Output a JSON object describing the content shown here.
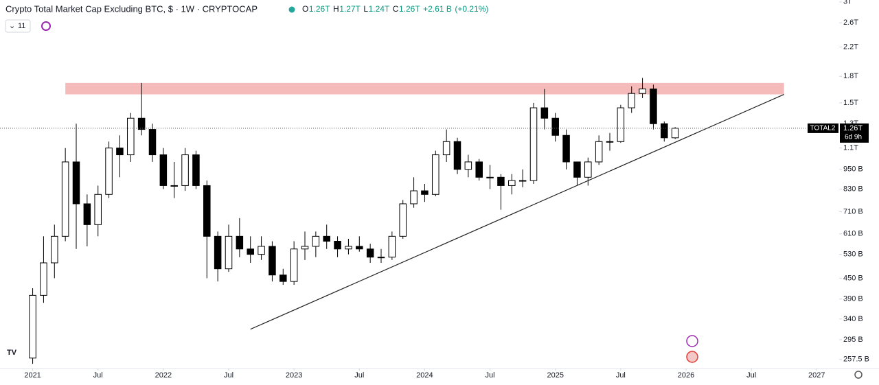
{
  "chart_data": {
    "type": "candlestick",
    "title": "Crypto Total Market Cap Excluding BTC, $ · 1W · CRYPTOCAP",
    "interval_badge": "11",
    "readout": [
      {
        "prefix": "O",
        "value": 1260000000000.0,
        "label": "1.26T"
      },
      {
        "prefix": "H",
        "value": 1270000000000.0,
        "label": "1.27T"
      },
      {
        "prefix": "L",
        "value": 1240000000000.0,
        "label": "1.24T"
      },
      {
        "prefix": "C",
        "value": 1260000000000.0,
        "label": "1.26T"
      }
    ],
    "change": {
      "value": 2610000000.0,
      "label": "+2.61 B"
    },
    "change_pct": {
      "value": 0.21,
      "label": "(+0.21%)"
    },
    "last_price": {
      "name": "TOTAL2",
      "value": 1260000000000.0,
      "label": "1.26T",
      "countdown": "6d 9h"
    },
    "log_scale": true,
    "up_color": "#ffffff",
    "down_color": "#000000",
    "outline_color": "#000000",
    "x": [
      "2021-01",
      "2021-02",
      "2021-03",
      "2021-04",
      "2021-05",
      "2021-06",
      "2021-07",
      "2021-08",
      "2021-09",
      "2021-10",
      "2021-11",
      "2021-12",
      "2022-01",
      "2022-02",
      "2022-03",
      "2022-04",
      "2022-05",
      "2022-06",
      "2022-07",
      "2022-08",
      "2022-09",
      "2022-10",
      "2022-11",
      "2022-12",
      "2023-01",
      "2023-02",
      "2023-03",
      "2023-04",
      "2023-05",
      "2023-06",
      "2023-07",
      "2023-08",
      "2023-09",
      "2023-10",
      "2023-11",
      "2023-12",
      "2024-01",
      "2024-02",
      "2024-03",
      "2024-04",
      "2024-05",
      "2024-06",
      "2024-07",
      "2024-08",
      "2024-09",
      "2024-10",
      "2024-11",
      "2024-12",
      "2025-01",
      "2025-02",
      "2025-03",
      "2025-04",
      "2025-05",
      "2025-06",
      "2025-07",
      "2025-08",
      "2025-09",
      "2025-10",
      "2025-11",
      "2025-12"
    ],
    "series": [
      {
        "name": "TOTAL2",
        "open": [
          260000000000.0,
          400000000000.0,
          500000000000.0,
          600000000000.0,
          1000000000000.0,
          750000000000.0,
          650000000000.0,
          800000000000.0,
          1100000000000.0,
          1050000000000.0,
          1350000000000.0,
          1250000000000.0,
          1050000000000.0,
          850000000000.0,
          850000000000.0,
          1050000000000.0,
          850000000000.0,
          600000000000.0,
          480000000000.0,
          600000000000.0,
          550000000000.0,
          530000000000.0,
          560000000000.0,
          460000000000.0,
          440000000000.0,
          550000000000.0,
          560000000000.0,
          600000000000.0,
          580000000000.0,
          550000000000.0,
          560000000000.0,
          550000000000.0,
          520000000000.0,
          520000000000.0,
          600000000000.0,
          750000000000.0,
          820000000000.0,
          800000000000.0,
          1050000000000.0,
          1150000000000.0,
          950000000000.0,
          1000000000000.0,
          900000000000.0,
          900000000000.0,
          850000000000.0,
          880000000000.0,
          880000000000.0,
          1450000000000.0,
          1350000000000.0,
          1200000000000.0,
          1000000000000.0,
          900000000000.0,
          1000000000000.0,
          1150000000000.0,
          1150000000000.0,
          1450000000000.0,
          1600000000000.0,
          1650000000000.0,
          1300000000000.0,
          1180000000000.0
        ],
        "high": [
          420000000000.0,
          600000000000.0,
          650000000000.0,
          1100000000000.0,
          1300000000000.0,
          800000000000.0,
          850000000000.0,
          1150000000000.0,
          1200000000000.0,
          1400000000000.0,
          1720000000000.0,
          1300000000000.0,
          1100000000000.0,
          1000000000000.0,
          1100000000000.0,
          1080000000000.0,
          880000000000.0,
          620000000000.0,
          650000000000.0,
          680000000000.0,
          600000000000.0,
          600000000000.0,
          580000000000.0,
          480000000000.0,
          580000000000.0,
          620000000000.0,
          620000000000.0,
          650000000000.0,
          600000000000.0,
          590000000000.0,
          600000000000.0,
          570000000000.0,
          550000000000.0,
          620000000000.0,
          770000000000.0,
          900000000000.0,
          860000000000.0,
          1080000000000.0,
          1250000000000.0,
          1180000000000.0,
          1050000000000.0,
          1020000000000.0,
          980000000000.0,
          920000000000.0,
          920000000000.0,
          950000000000.0,
          1500000000000.0,
          1650000000000.0,
          1400000000000.0,
          1250000000000.0,
          1000000000000.0,
          1030000000000.0,
          1200000000000.0,
          1220000000000.0,
          1480000000000.0,
          1680000000000.0,
          1780000000000.0,
          1700000000000.0,
          1320000000000.0,
          1270000000000.0
        ],
        "low": [
          250000000000.0,
          380000000000.0,
          450000000000.0,
          580000000000.0,
          550000000000.0,
          560000000000.0,
          600000000000.0,
          780000000000.0,
          900000000000.0,
          1000000000000.0,
          1200000000000.0,
          1000000000000.0,
          830000000000.0,
          780000000000.0,
          820000000000.0,
          830000000000.0,
          450000000000.0,
          440000000000.0,
          470000000000.0,
          520000000000.0,
          500000000000.0,
          510000000000.0,
          440000000000.0,
          430000000000.0,
          430000000000.0,
          510000000000.0,
          520000000000.0,
          550000000000.0,
          520000000000.0,
          530000000000.0,
          540000000000.0,
          500000000000.0,
          500000000000.0,
          510000000000.0,
          590000000000.0,
          730000000000.0,
          760000000000.0,
          790000000000.0,
          1000000000000.0,
          920000000000.0,
          900000000000.0,
          880000000000.0,
          830000000000.0,
          720000000000.0,
          800000000000.0,
          840000000000.0,
          860000000000.0,
          1250000000000.0,
          1150000000000.0,
          950000000000.0,
          850000000000.0,
          850000000000.0,
          980000000000.0,
          1080000000000.0,
          1140000000000.0,
          1400000000000.0,
          1550000000000.0,
          1250000000000.0,
          1150000000000.0,
          1170000000000.0
        ],
        "close": [
          400000000000.0,
          500000000000.0,
          600000000000.0,
          1000000000000.0,
          750000000000.0,
          650000000000.0,
          800000000000.0,
          1100000000000.0,
          1050000000000.0,
          1350000000000.0,
          1250000000000.0,
          1050000000000.0,
          850000000000.0,
          850000000000.0,
          1050000000000.0,
          850000000000.0,
          600000000000.0,
          480000000000.0,
          600000000000.0,
          550000000000.0,
          530000000000.0,
          560000000000.0,
          460000000000.0,
          440000000000.0,
          550000000000.0,
          560000000000.0,
          600000000000.0,
          580000000000.0,
          550000000000.0,
          560000000000.0,
          550000000000.0,
          520000000000.0,
          520000000000.0,
          600000000000.0,
          750000000000.0,
          820000000000.0,
          800000000000.0,
          1050000000000.0,
          1150000000000.0,
          950000000000.0,
          1000000000000.0,
          900000000000.0,
          900000000000.0,
          850000000000.0,
          880000000000.0,
          880000000000.0,
          1450000000000.0,
          1350000000000.0,
          1200000000000.0,
          1000000000000.0,
          900000000000.0,
          1000000000000.0,
          1150000000000.0,
          1150000000000.0,
          1450000000000.0,
          1600000000000.0,
          1650000000000.0,
          1300000000000.0,
          1180000000000.0,
          1260000000000.0
        ]
      }
    ],
    "resistance_zone": {
      "x": [
        "2021-04",
        "2026-10"
      ],
      "y": [
        1590000000000.0,
        1720000000000.0
      ],
      "color": "#f4b4b4"
    },
    "trendline": {
      "x": [
        "2022-09",
        "2026-10"
      ],
      "y": [
        317000000000.0,
        1590000000000.0
      ],
      "color": "#222222"
    },
    "xlim": [
      "2020-10",
      "2027-03"
    ],
    "ylim": [
      242000000000.0,
      3040000000000.0
    ],
    "xticks": [
      {
        "value": "2021-01",
        "label": "2021"
      },
      {
        "value": "2021-07",
        "label": "Jul"
      },
      {
        "value": "2022-01",
        "label": "2022"
      },
      {
        "value": "2022-07",
        "label": "Jul"
      },
      {
        "value": "2023-01",
        "label": "2023"
      },
      {
        "value": "2023-07",
        "label": "Jul"
      },
      {
        "value": "2024-01",
        "label": "2024"
      },
      {
        "value": "2024-07",
        "label": "Jul"
      },
      {
        "value": "2025-01",
        "label": "2025"
      },
      {
        "value": "2025-07",
        "label": "Jul"
      },
      {
        "value": "2026-01",
        "label": "2026"
      },
      {
        "value": "2026-07",
        "label": "Jul"
      },
      {
        "value": "2027-01",
        "label": "2027"
      }
    ],
    "yticks": [
      {
        "value": 3000000000000.0,
        "label": "3T"
      },
      {
        "value": 2600000000000.0,
        "label": "2.6T"
      },
      {
        "value": 2200000000000.0,
        "label": "2.2T"
      },
      {
        "value": 1800000000000.0,
        "label": "1.8T"
      },
      {
        "value": 1500000000000.0,
        "label": "1.5T"
      },
      {
        "value": 1300000000000.0,
        "label": "1.3T"
      },
      {
        "value": 1100000000000.0,
        "label": "1.1T"
      },
      {
        "value": 950000000000.0,
        "label": "950 B"
      },
      {
        "value": 830000000000.0,
        "label": "830 B"
      },
      {
        "value": 710000000000.0,
        "label": "710 B"
      },
      {
        "value": 610000000000.0,
        "label": "610 B"
      },
      {
        "value": 530000000000.0,
        "label": "530 B"
      },
      {
        "value": 450000000000.0,
        "label": "450 B"
      },
      {
        "value": 390000000000.0,
        "label": "390 B"
      },
      {
        "value": 340000000000.0,
        "label": "340 B"
      },
      {
        "value": 295000000000.0,
        "label": "295 B"
      },
      {
        "value": 257500000000.0,
        "label": "257.5 B"
      }
    ]
  }
}
